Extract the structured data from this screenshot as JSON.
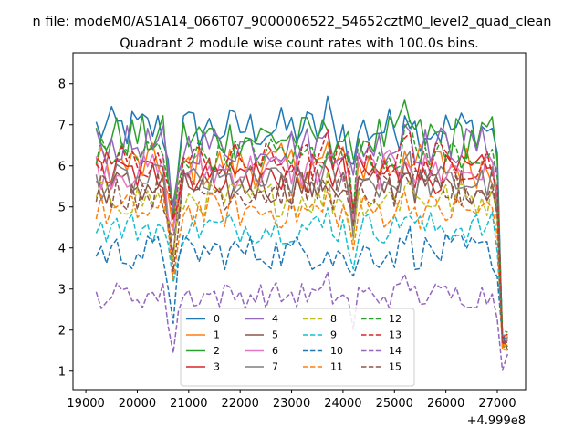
{
  "chart_data": {
    "type": "line",
    "suptitle": "n file: modeM0/AS1A14_066T07_9000006522_54652cztM0_level2_quad_clean",
    "title": "Quadrant 2 module wise count rates with 100.0s bins.",
    "xlabel": "",
    "ylabel": "",
    "x_offset_text": "+4.999e8",
    "xlim": [
      18750,
      27550
    ],
    "ylim": [
      0.55,
      8.75
    ],
    "xticks": [
      19000,
      20000,
      21000,
      22000,
      23000,
      24000,
      25000,
      26000,
      27000
    ],
    "yticks": [
      1,
      2,
      3,
      4,
      5,
      6,
      7,
      8
    ],
    "x_start": 19200,
    "x_step": 100,
    "n_points": 81,
    "legend_columns": 4,
    "legend_position": "lower-center",
    "series": [
      {
        "name": "0",
        "color": "#1f77b4",
        "style": "solid",
        "base": 6.9,
        "noise": 0.25
      },
      {
        "name": "1",
        "color": "#ff7f0e",
        "style": "solid",
        "base": 6.0,
        "noise": 0.25
      },
      {
        "name": "2",
        "color": "#2ca02c",
        "style": "solid",
        "base": 6.7,
        "noise": 0.25
      },
      {
        "name": "3",
        "color": "#d62728",
        "style": "solid",
        "base": 5.8,
        "noise": 0.22
      },
      {
        "name": "4",
        "color": "#9467bd",
        "style": "solid",
        "base": 6.5,
        "noise": 0.22
      },
      {
        "name": "5",
        "color": "#8c564b",
        "style": "solid",
        "base": 5.5,
        "noise": 0.2
      },
      {
        "name": "6",
        "color": "#e377c2",
        "style": "solid",
        "base": 5.9,
        "noise": 0.22
      },
      {
        "name": "7",
        "color": "#7f7f7f",
        "style": "solid",
        "base": 5.6,
        "noise": 0.2
      },
      {
        "name": "8",
        "color": "#bcbd22",
        "style": "dashed",
        "base": 5.2,
        "noise": 0.2
      },
      {
        "name": "9",
        "color": "#17becf",
        "style": "dashed",
        "base": 4.5,
        "noise": 0.18
      },
      {
        "name": "10",
        "color": "#1f77b4",
        "style": "dashed",
        "base": 3.9,
        "noise": 0.2
      },
      {
        "name": "11",
        "color": "#ff7f0e",
        "style": "dashed",
        "base": 4.9,
        "noise": 0.2
      },
      {
        "name": "12",
        "color": "#2ca02c",
        "style": "dashed",
        "base": 6.3,
        "noise": 0.2
      },
      {
        "name": "13",
        "color": "#d62728",
        "style": "dashed",
        "base": 6.1,
        "noise": 0.22
      },
      {
        "name": "14",
        "color": "#9467bd",
        "style": "dashed",
        "base": 2.85,
        "noise": 0.15
      },
      {
        "name": "15",
        "color": "#8c564b",
        "style": "dashed",
        "base": 5.4,
        "noise": 0.22
      }
    ]
  }
}
